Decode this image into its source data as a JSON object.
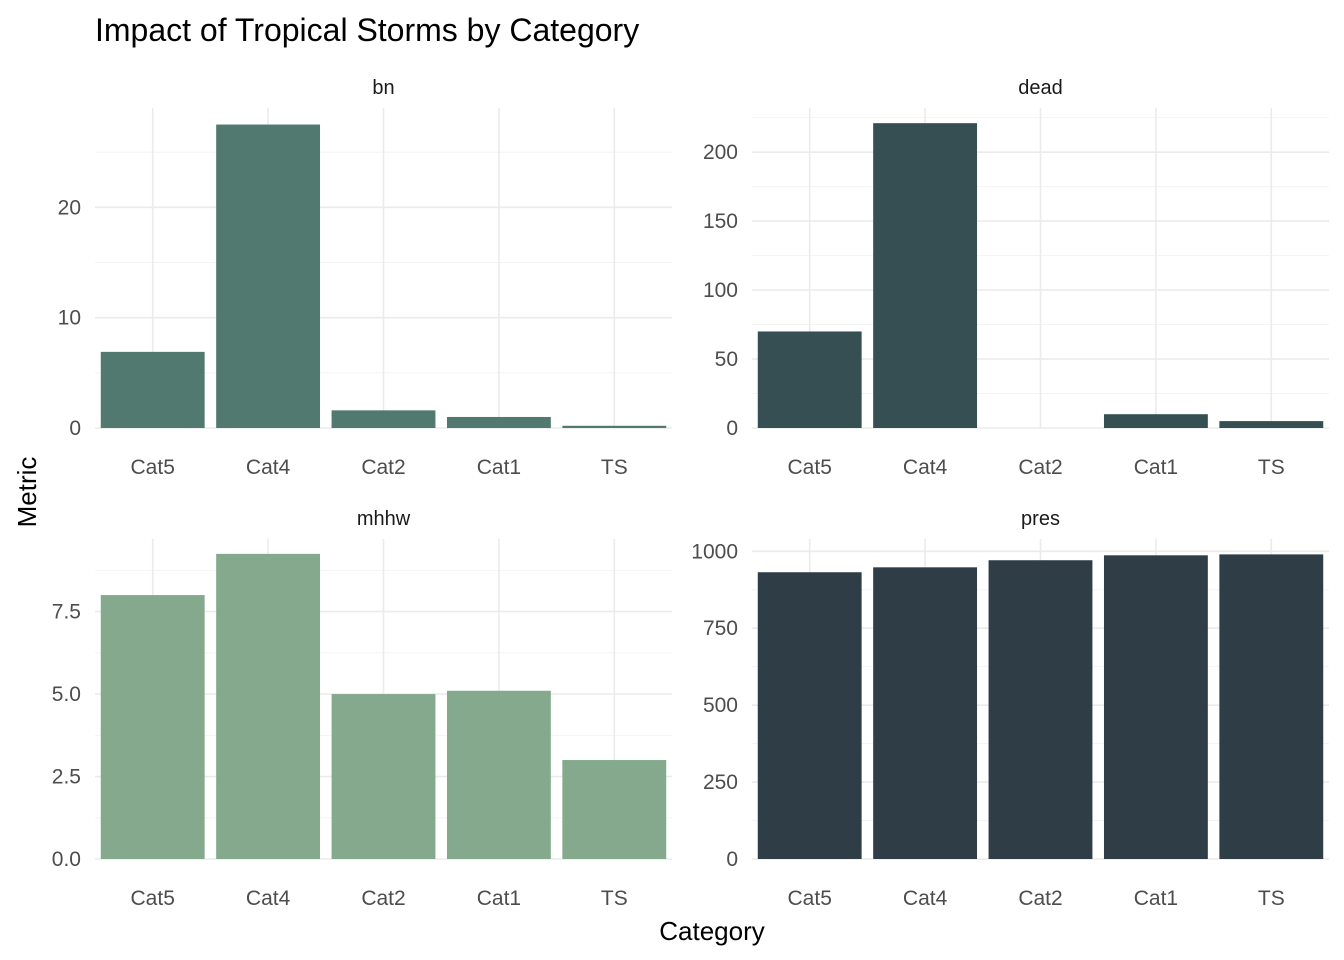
{
  "chart_data": {
    "type": "bar",
    "title": "Impact of Tropical Storms by Category",
    "xlabel": "Category",
    "ylabel": "Metric",
    "categories": [
      "Cat5",
      "Cat4",
      "Cat2",
      "Cat1",
      "TS"
    ],
    "grid": true,
    "legend": "none",
    "facets": [
      {
        "name": "bn",
        "color": "#52796f",
        "values": [
          6.9,
          27.5,
          1.6,
          1.0,
          0.2
        ],
        "ylim": [
          0,
          29.0
        ],
        "yticks": [
          0,
          10,
          20
        ],
        "ytick_labels": [
          "0",
          "10",
          "20"
        ]
      },
      {
        "name": "dead",
        "color": "#354f52",
        "values": [
          70,
          221,
          0,
          10,
          5
        ],
        "ylim": [
          0,
          232
        ],
        "yticks": [
          0,
          50,
          100,
          150,
          200
        ],
        "ytick_labels": [
          "0",
          "50",
          "100",
          "150",
          "200"
        ]
      },
      {
        "name": "mhhw",
        "color": "#84a98c",
        "values": [
          8.0,
          9.25,
          5.0,
          5.1,
          3.0
        ],
        "ylim": [
          0,
          9.7
        ],
        "yticks": [
          0,
          2.5,
          5,
          7.5
        ],
        "ytick_labels": [
          "0.0",
          "2.5",
          "5.0",
          "7.5"
        ]
      },
      {
        "name": "pres",
        "color": "#2f3e46",
        "values": [
          932,
          948,
          971,
          987,
          990
        ],
        "ylim": [
          0,
          1040
        ],
        "yticks": [
          0,
          250,
          500,
          750,
          1000
        ],
        "ytick_labels": [
          "0",
          "250",
          "500",
          "750",
          "1000"
        ]
      }
    ]
  }
}
